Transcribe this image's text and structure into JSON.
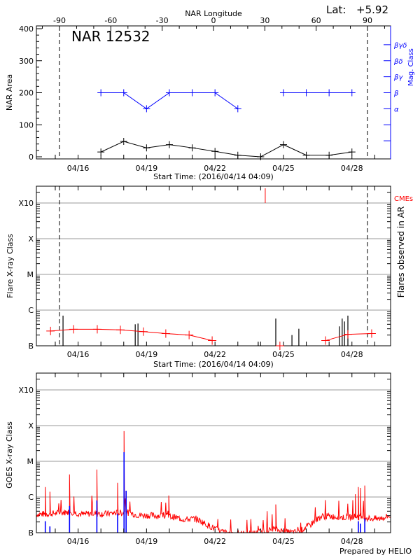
{
  "header": {
    "lat_label": "Lat:",
    "lat_value": "+5.92"
  },
  "footer": {
    "credit": "Prepared by HELIO"
  },
  "colors": {
    "area": "#000000",
    "mag_class": "#0000ff",
    "flare_line": "#ff0000",
    "cme": "#ff0000",
    "goes_flux": "#ff0000",
    "goes_flares": "#0000ff",
    "grid": "#999999"
  },
  "chart_data": [
    {
      "type": "line",
      "title": "NAR 12532",
      "top_axis_label": "NAR Longitude",
      "top_ticks": [
        -90,
        -60,
        -30,
        0,
        30,
        60,
        90
      ],
      "xlabel": "Start Time: (2016/04/14 04:09)",
      "xticklabels": [
        "04/16",
        "04/19",
        "04/22",
        "04/25",
        "04/28"
      ],
      "ylabel": "NAR Area",
      "ylim": [
        0,
        400
      ],
      "yticks": [
        "0",
        "100",
        "200",
        "300",
        "400"
      ],
      "y2label": "Mag. Class",
      "y2_classes": [
        "α",
        "β",
        "βγ",
        "βδ",
        "βγδ"
      ],
      "limb_crossings": [
        "04/15 04:25",
        "04/28 16:20"
      ],
      "x": [
        "04/17 00:00",
        "04/18 00:00",
        "04/19 00:00",
        "04/20 00:00",
        "04/21 00:00",
        "04/22 00:00",
        "04/23 00:00",
        "04/24 00:00",
        "04/25 00:00",
        "04/26 00:00",
        "04/27 00:00",
        "04/28 00:00"
      ],
      "series": [
        {
          "values": [
            15,
            48,
            28,
            38,
            28,
            17,
            5,
            0,
            38,
            5,
            5,
            15
          ]
        },
        {
          "values": [
            "β",
            "β",
            "α",
            "β",
            "β",
            "β",
            "α",
            null,
            "β",
            "β",
            "β",
            "β"
          ]
        }
      ]
    },
    {
      "type": "bar",
      "xlabel": "Start Time: (2016/04/14 04:09)",
      "xticklabels": [
        "04/16",
        "04/19",
        "04/22",
        "04/25",
        "04/28"
      ],
      "ylabel": "Flare X-ray Class",
      "y2label": "Flares observed in AR",
      "yticks": [
        "B",
        "C",
        "M",
        "X",
        "X10"
      ],
      "grid": true,
      "limb_crossings": [
        "04/15 04:25",
        "04/28 16:20"
      ],
      "flares": {
        "x": [
          "04/15 08:10",
          "04/18 12:05",
          "04/18 15:00",
          "04/23 21:25",
          "04/24 15:55",
          "04/25 08:55",
          "04/25 16:10",
          "04/27 10:50",
          "04/27 13:45",
          "04/27 16:10",
          "04/27 19:45"
        ],
        "values": [
          "B7.0",
          "B4.0",
          "B4.2",
          "B1.3",
          "B5.8",
          "B2.0",
          "B3.0",
          "B3.5",
          "B5.8",
          "B4.8",
          "B7.0"
        ]
      },
      "line": {
        "x": [
          "04/14 19:00",
          "04/15 19:15",
          "04/16 20:10",
          "04/17 20:30",
          "04/18 20:40",
          "04/19 20:15",
          "04/20 20:45",
          "04/21 21:00",
          null,
          "04/24 20:15",
          null,
          "04/26 20:15",
          "04/27 19:45",
          "04/28 20:45"
        ],
        "values": [
          "B2.6",
          "B2.9",
          "B2.9",
          "B2.8",
          "B2.5",
          "B2.2",
          "B2.0",
          "B1.4",
          null,
          "B1.0",
          null,
          "B1.4",
          "B2.1",
          "B2.2"
        ]
      },
      "cme_label": "CMEs",
      "cmes": [
        "04/24 04:50"
      ]
    },
    {
      "type": "line",
      "xticklabels": [
        "04/16",
        "04/19",
        "04/22",
        "04/25",
        "04/28"
      ],
      "ylabel": "GOES X-ray Class",
      "yticks": [
        "B",
        "C",
        "M",
        "X",
        "X10"
      ],
      "grid": true,
      "flux_baseline": {
        "x": [
          "04/14 04:09",
          "04/14 16:00",
          "04/15 04:00",
          "04/15 16:00",
          "04/16 04:00",
          "04/16 16:00",
          "04/17 04:00",
          "04/17 16:00",
          "04/18 04:00",
          "04/18 16:00",
          "04/19 04:00",
          "04/19 16:00",
          "04/20 04:00",
          "04/20 16:00",
          "04/21 04:00",
          "04/21 16:00",
          "04/22 04:00",
          "04/22 16:00",
          "04/23 04:00",
          "04/23 16:00",
          "04/24 04:00",
          "04/24 16:00",
          "04/25 04:00",
          "04/25 16:00",
          "04/26 04:00",
          "04/26 16:00",
          "04/27 04:00",
          "04/27 16:00",
          "04/28 04:00",
          "04/28 16:00",
          "04/29 04:00",
          "04/29 16:00"
        ],
        "values": [
          3.2,
          3.3,
          3.5,
          3.8,
          3.2,
          3.4,
          3.3,
          3.5,
          3.6,
          3.0,
          3.0,
          2.9,
          2.7,
          2.3,
          2.4,
          1.6,
          1.1,
          0.9,
          0.9,
          0.9,
          1.1,
          1.2,
          1.0,
          1.0,
          1.6,
          2.8,
          2.8,
          2.6,
          2.8,
          2.5,
          2.4,
          2.9
        ]
      },
      "flux_peaks": {
        "x": [
          "04/14 13:30",
          "04/14 18:20",
          "04/15 15:00",
          "04/16 19:45",
          "04/17 17:35",
          "04/18 00:20",
          "04/19 23:20",
          "04/24 15:55",
          "04/28 03:40",
          "04/28 06:45",
          "04/28 09:00",
          "04/28 13:30"
        ],
        "values": [
          "C1.9",
          "C1.4",
          "C4.3",
          "C5.9",
          "C2.5",
          "M7.0",
          "C1.1",
          "B6.2",
          "C1.2",
          "C1.9",
          "C1.8",
          "C2.1"
        ]
      },
      "flares": {
        "x": [
          "04/14 13:30",
          "04/14 18:20",
          "04/15 15:00",
          "04/16 19:45",
          "04/17 17:35",
          "04/18 00:20",
          "04/18 02:30",
          "04/28 06:45",
          "04/28 09:00",
          "04/28 13:30"
        ],
        "values": [
          "B2.1",
          "B1.5",
          "B5.6",
          "B8.0",
          "B3.4",
          "M1.8",
          "C1.5",
          "B2.1",
          "B1.8",
          "B2.5"
        ]
      }
    }
  ]
}
